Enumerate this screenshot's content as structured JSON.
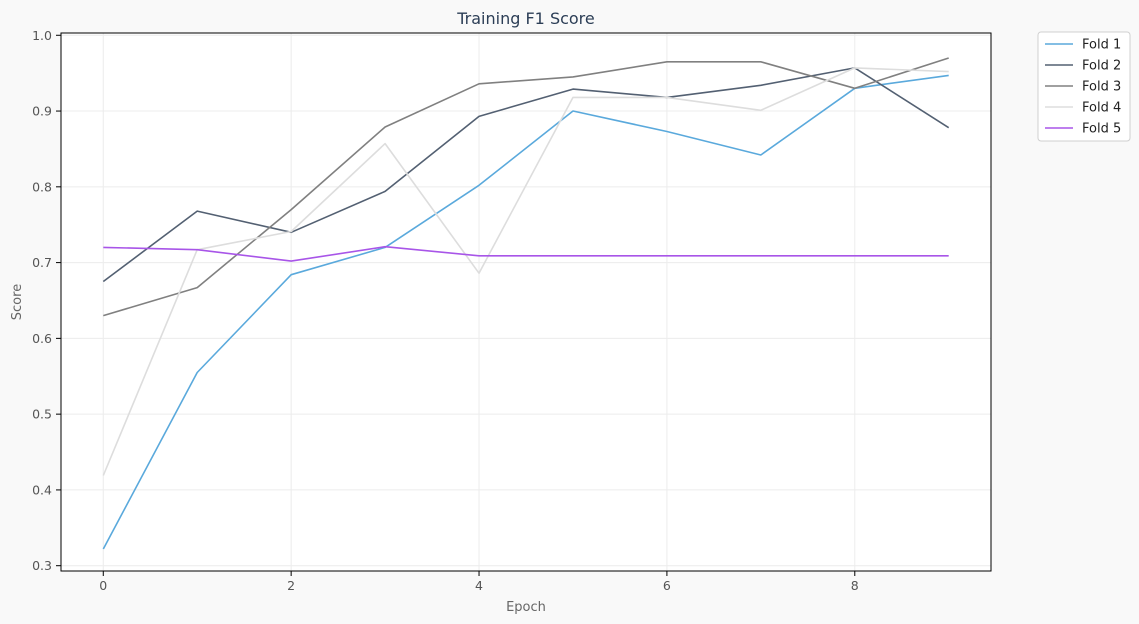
{
  "chart_data": {
    "type": "line",
    "title": "Training F1 Score",
    "xlabel": "Epoch",
    "ylabel": "Score",
    "x": [
      0,
      1,
      2,
      3,
      4,
      5,
      6,
      7,
      8,
      9
    ],
    "xlim": [
      -0.45,
      9.45
    ],
    "ylim": [
      0.293,
      1.003
    ],
    "xticks": [
      0,
      2,
      4,
      6,
      8
    ],
    "yticks": [
      0.3,
      0.4,
      0.5,
      0.6,
      0.7,
      0.8,
      0.9,
      1.0
    ],
    "xtick_labels": [
      "0",
      "2",
      "4",
      "6",
      "8"
    ],
    "ytick_labels": [
      "0.3",
      "0.4",
      "0.5",
      "0.6",
      "0.7",
      "0.8",
      "0.9",
      "1.0"
    ],
    "grid": true,
    "legend_position": "outside-top-right",
    "series": [
      {
        "name": "Fold 1",
        "color": "#5aa9dc",
        "values": [
          0.322,
          0.555,
          0.684,
          0.72,
          0.802,
          0.9,
          0.873,
          0.842,
          0.93,
          0.947
        ]
      },
      {
        "name": "Fold 2",
        "color": "#536072",
        "values": [
          0.675,
          0.768,
          0.74,
          0.794,
          0.893,
          0.929,
          0.918,
          0.934,
          0.957,
          0.878
        ]
      },
      {
        "name": "Fold 3",
        "color": "#808080",
        "values": [
          0.63,
          0.667,
          0.77,
          0.879,
          0.936,
          0.945,
          0.965,
          0.965,
          0.93,
          0.97
        ]
      },
      {
        "name": "Fold 4",
        "color": "#dddddd",
        "values": [
          0.419,
          0.717,
          0.741,
          0.857,
          0.686,
          0.918,
          0.918,
          0.901,
          0.957,
          0.952
        ]
      },
      {
        "name": "Fold 5",
        "color": "#a855e8",
        "values": [
          0.72,
          0.717,
          0.702,
          0.721,
          0.709,
          0.709,
          0.709,
          0.709,
          0.709,
          0.709
        ]
      }
    ]
  }
}
